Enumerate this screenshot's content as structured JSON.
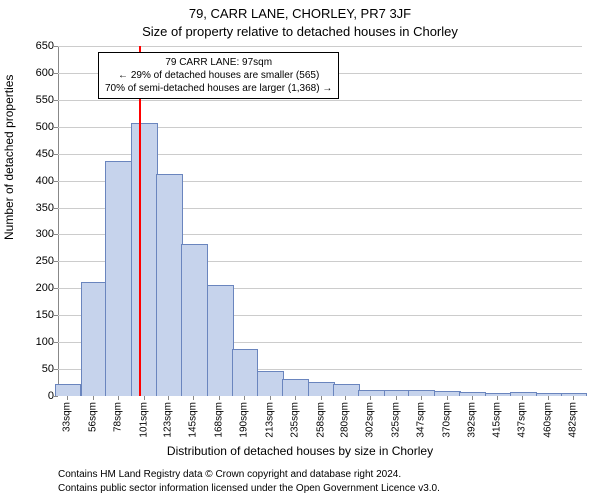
{
  "header": {
    "address": "79, CARR LANE, CHORLEY, PR7 3JF",
    "subtitle": "Size of property relative to detached houses in Chorley"
  },
  "axes": {
    "ylabel": "Number of detached properties",
    "xlabel": "Distribution of detached houses by size in Chorley"
  },
  "footer": {
    "line1": "Contains HM Land Registry data © Crown copyright and database right 2024.",
    "line2": "Contains public sector information licensed under the Open Government Licence v3.0."
  },
  "callout": {
    "line1": "79 CARR LANE: 97sqm",
    "line2": "← 29% of detached houses are smaller (565)",
    "line3": "70% of semi-detached houses are larger (1,368) →"
  },
  "chart": {
    "type": "histogram",
    "background_color": "#ffffff",
    "grid_color": "#cccccc",
    "axis_color": "#888888",
    "bar_fill": "#c6d3ec",
    "bar_stroke": "#6a85be",
    "marker_color": "#ff0000",
    "marker_x": 97,
    "ylim": [
      0,
      650
    ],
    "ytick_step": 50,
    "x_min": 25,
    "x_max": 490,
    "x_categories": [
      "33sqm",
      "56sqm",
      "78sqm",
      "101sqm",
      "123sqm",
      "145sqm",
      "168sqm",
      "190sqm",
      "213sqm",
      "235sqm",
      "258sqm",
      "280sqm",
      "302sqm",
      "325sqm",
      "347sqm",
      "370sqm",
      "392sqm",
      "415sqm",
      "437sqm",
      "460sqm",
      "482sqm"
    ],
    "x_tick_values": [
      33,
      56,
      78,
      101,
      123,
      145,
      168,
      190,
      213,
      235,
      258,
      280,
      302,
      325,
      347,
      370,
      392,
      415,
      437,
      460,
      482
    ],
    "bar_width_units": 22,
    "bars": [
      {
        "x": 33,
        "y": 20
      },
      {
        "x": 56,
        "y": 210
      },
      {
        "x": 78,
        "y": 435
      },
      {
        "x": 101,
        "y": 505
      },
      {
        "x": 123,
        "y": 410
      },
      {
        "x": 145,
        "y": 280
      },
      {
        "x": 168,
        "y": 205
      },
      {
        "x": 190,
        "y": 85
      },
      {
        "x": 213,
        "y": 45
      },
      {
        "x": 235,
        "y": 30
      },
      {
        "x": 258,
        "y": 25
      },
      {
        "x": 280,
        "y": 20
      },
      {
        "x": 302,
        "y": 10
      },
      {
        "x": 325,
        "y": 10
      },
      {
        "x": 347,
        "y": 10
      },
      {
        "x": 370,
        "y": 8
      },
      {
        "x": 392,
        "y": 5
      },
      {
        "x": 415,
        "y": 3
      },
      {
        "x": 437,
        "y": 5
      },
      {
        "x": 460,
        "y": 3
      },
      {
        "x": 482,
        "y": 3
      }
    ],
    "title_fontsize": 13,
    "label_fontsize": 12,
    "tick_fontsize": 11,
    "callout_fontsize": 10,
    "footer_fontsize": 10
  }
}
